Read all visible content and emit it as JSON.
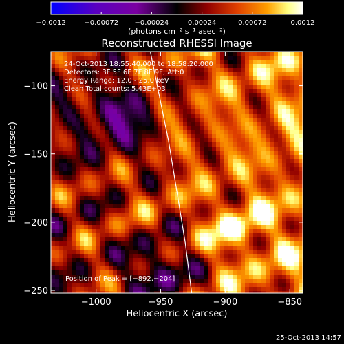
{
  "colorbar": {
    "ticks": [
      -0.0012,
      -0.00072,
      -0.00024,
      0.00024,
      0.00072,
      0.0012
    ],
    "tick_labels": [
      "−0.0012",
      "−0.00072",
      "−0.00024",
      "0.00024",
      "0.00072",
      "0.0012"
    ],
    "units_label": "(photons cm⁻² s⁻¹ asec⁻²)",
    "range": [
      -0.0012,
      0.0012
    ],
    "colormap": [
      "#0000ff",
      "#5a00c0",
      "#7a00a0",
      "#000000",
      "#900000",
      "#e04000",
      "#ffa000",
      "#ffff80",
      "#ffffff"
    ]
  },
  "chart_data": {
    "type": "heatmap",
    "title": "Reconstructed RHESSI Image",
    "xlabel": "Heliocentric X (arcsec)",
    "ylabel": "Heliocentric Y (arcsec)",
    "xlim": [
      -1035,
      -840
    ],
    "ylim": [
      -252,
      -75
    ],
    "xticks": [
      -1000,
      -950,
      -900,
      -850
    ],
    "yticks": [
      -250,
      -200,
      -150,
      -100
    ],
    "xtick_labels": [
      "−1000",
      "−950",
      "−900",
      "−850"
    ],
    "ytick_labels": [
      "−250",
      "−200",
      "−150",
      "−100"
    ],
    "annotations": [
      "24-Oct-2013 18:55:40.000 to 18:58:20.000",
      "Detectors: 3F 5F 6F 7F 8F 9F, Att:0",
      "Energy Range: 12.0 - 25.0 keV",
      "Clean     Total counts: 5.43E+03"
    ],
    "peak_label": "Position of Peak = [−892,−204]",
    "peak": [
      -892,
      -204
    ],
    "limb": [
      [
        -958,
        -75
      ],
      [
        -944,
        -140
      ],
      [
        -937,
        -180
      ],
      [
        -931,
        -215
      ],
      [
        -926,
        -252
      ]
    ],
    "grid": false
  },
  "footer": {
    "timestamp": "25-Oct-2013 14:57"
  }
}
